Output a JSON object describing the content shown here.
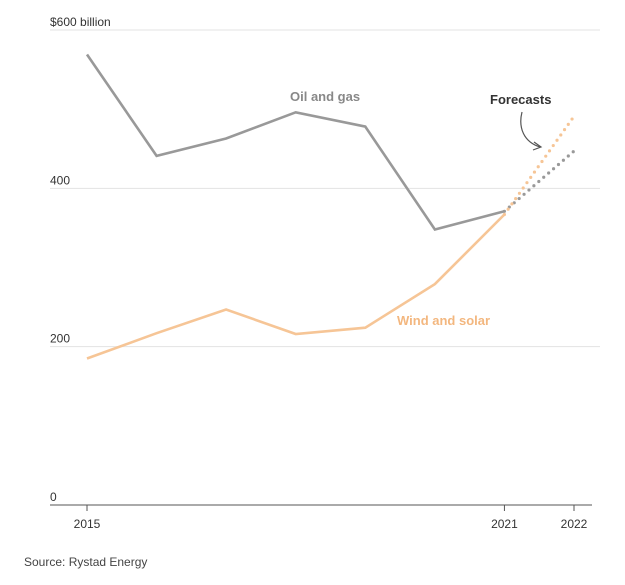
{
  "chart_data": {
    "type": "line",
    "x": [
      2015,
      2016,
      2017,
      2018,
      2019,
      2020,
      2021,
      2022
    ],
    "x_tick_labels": [
      "2015",
      "2021",
      "2022"
    ],
    "x_tick_values": [
      2015,
      2021,
      2022
    ],
    "y_tick_labels": [
      "$600 billion",
      "400",
      "200",
      "0"
    ],
    "y_tick_values": [
      600,
      400,
      200,
      0
    ],
    "ylim": [
      0,
      600
    ],
    "grid": "horizontal",
    "series": [
      {
        "name": "Oil and gas",
        "color": "#999999",
        "values": [
          569,
          441,
          463,
          496,
          478,
          348,
          371,
          447
        ],
        "forecast_from": 2021
      },
      {
        "name": "Wind and solar",
        "color": "#f6c596",
        "values": [
          185,
          217,
          247,
          216,
          224,
          279,
          367,
          491
        ],
        "forecast_from": 2021
      }
    ],
    "annotation": "Forecasts",
    "source": "Source: Rystad Energy"
  }
}
